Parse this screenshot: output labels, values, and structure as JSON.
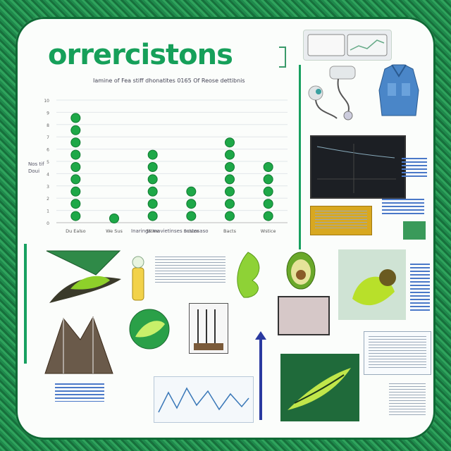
{
  "page": {
    "title": "orrercistons"
  },
  "chart_data": {
    "type": "scatter",
    "title": "Iamine of Fea stiff dhonatites 0165 Of Reose dettibnis",
    "xlabel": "Inarings mavietinses acstesaso",
    "ylabel": "Nos tif Doui",
    "ylim": [
      0,
      10
    ],
    "yticks": [
      "0",
      "1",
      "2",
      "3",
      "4",
      "5",
      "6",
      "7",
      "8",
      "9",
      "10"
    ],
    "categories": [
      "Du Ealso",
      "We Sus",
      "Sitiee",
      "Sviuce",
      "Bacts",
      "Wstice"
    ],
    "values": [
      9,
      0,
      6,
      3,
      7,
      5
    ]
  },
  "colors": {
    "accent": "#16a05a",
    "dot": "#1ea848",
    "dot_edge": "#0f7a30",
    "background_pattern": "#1f8a4c"
  },
  "icons": {
    "fitness_tracker": "watch-icon",
    "earbuds": "earbuds-icon",
    "jacket": "jacket-icon",
    "avocado": "avocado-icon",
    "leaf": "leaf-icon",
    "pointer": "pointer-icon"
  }
}
